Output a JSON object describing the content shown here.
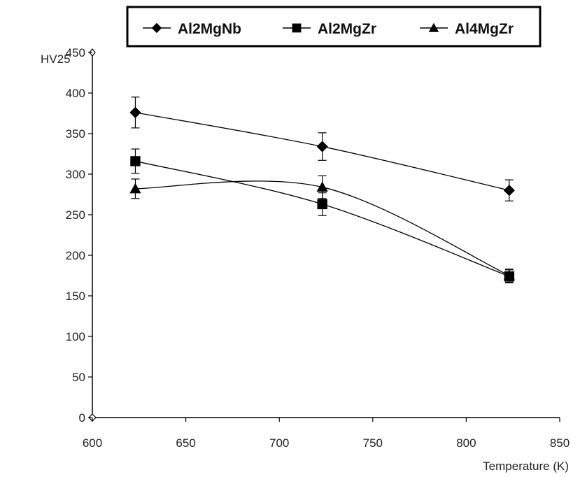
{
  "chart_data": {
    "type": "line",
    "title": "",
    "xlabel": "Temperature (K)",
    "ylabel": "HV25",
    "xlim": [
      600,
      850
    ],
    "ylim": [
      0,
      450
    ],
    "xticks": [
      600,
      650,
      700,
      750,
      800,
      850
    ],
    "yticks": [
      0,
      50,
      100,
      150,
      200,
      250,
      300,
      350,
      400,
      450
    ],
    "grid": false,
    "legend_position": "top-right",
    "series": [
      {
        "name": "Al2MgNb",
        "marker": "diamond",
        "color": "#000000",
        "x": [
          623,
          723,
          823
        ],
        "y": [
          376,
          334,
          280
        ],
        "err": [
          19,
          17,
          13
        ]
      },
      {
        "name": "Al2MgZr",
        "marker": "square",
        "color": "#000000",
        "x": [
          623,
          723,
          823
        ],
        "y": [
          316,
          263,
          174
        ],
        "err": [
          15,
          14,
          8
        ]
      },
      {
        "name": "Al4MgZr",
        "marker": "triangle",
        "color": "#000000",
        "x": [
          623,
          723,
          823
        ],
        "y": [
          282,
          284,
          175
        ],
        "err": [
          12,
          14,
          8
        ]
      }
    ]
  }
}
